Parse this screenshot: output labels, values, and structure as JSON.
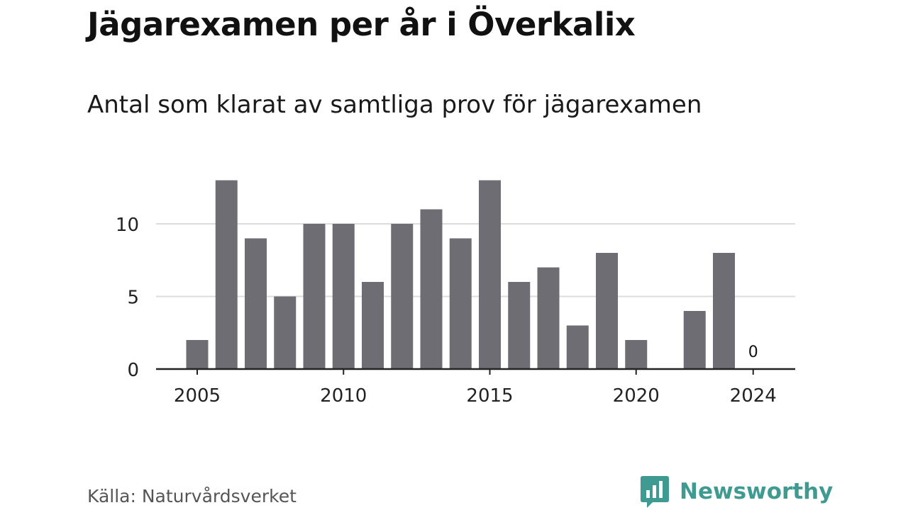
{
  "title": "Jägarexamen per år i Överkalix",
  "subtitle": "Antal som klarat av samtliga prov för jägarexamen",
  "source": "Källa: Naturvårdsverket",
  "brand": {
    "name": "Newsworthy",
    "icon": "newsworthy-logo-icon",
    "color": "#3f9b92"
  },
  "chart_data": {
    "type": "bar",
    "x": [
      2005,
      2006,
      2007,
      2008,
      2009,
      2010,
      2011,
      2012,
      2013,
      2014,
      2015,
      2016,
      2017,
      2018,
      2019,
      2020,
      2021,
      2022,
      2023,
      2024
    ],
    "values": [
      2,
      13,
      9,
      5,
      10,
      10,
      6,
      10,
      11,
      9,
      13,
      6,
      7,
      3,
      8,
      2,
      0,
      4,
      8,
      0
    ],
    "x_ticks": [
      "2005",
      "2010",
      "2015",
      "2020",
      "2024"
    ],
    "y_ticks": [
      "0",
      "5",
      "10"
    ],
    "ylim": [
      0,
      13
    ],
    "annotations": [
      {
        "x": 2024,
        "label": "0"
      }
    ],
    "bar_color": "#6e6d74",
    "grid": true,
    "title": "Jägarexamen per år i Överkalix",
    "subtitle": "Antal som klarat av samtliga prov för jägarexamen",
    "xlabel": "",
    "ylabel": ""
  }
}
